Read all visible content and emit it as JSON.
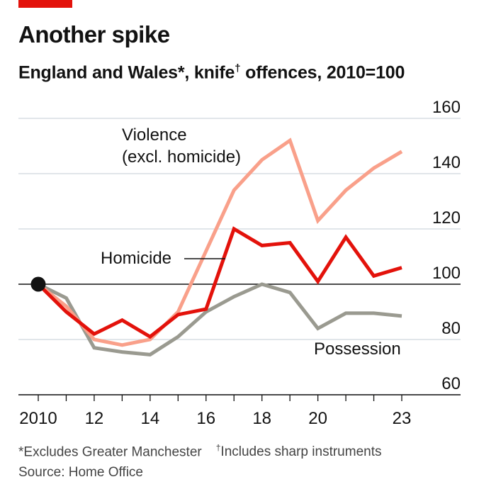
{
  "header": {
    "title": "Another spike",
    "subtitle_main": "England and Wales*, knife",
    "subtitle_dagger": "†",
    "subtitle_tail": " offences, 2010=100"
  },
  "footer": {
    "footnote_1": "*Excludes Greater Manchester",
    "footnote_2_mark": "†",
    "footnote_2": "Includes sharp instruments",
    "source": "Source: Home Office"
  },
  "colors": {
    "accent": "#e3120b",
    "violence": "#f9a08a",
    "homicide": "#e3120b",
    "possession": "#9a9a90",
    "grid": "#cfd7de",
    "baseline": "#121212"
  },
  "chart_data": {
    "type": "line",
    "title": "Another spike",
    "subtitle": "England and Wales*, knife† offences, 2010=100",
    "x": [
      2010,
      2011,
      2012,
      2013,
      2014,
      2015,
      2016,
      2017,
      2018,
      2019,
      2020,
      2021,
      2022,
      2023
    ],
    "x_tick_values": [
      2010,
      2012,
      2014,
      2016,
      2018,
      2020,
      2023
    ],
    "x_tick_labels": [
      "2010",
      "12",
      "14",
      "16",
      "18",
      "20",
      "23"
    ],
    "y_ticks": [
      60,
      80,
      100,
      120,
      140,
      160
    ],
    "ylim": [
      60,
      160
    ],
    "xlim": [
      2010,
      2023
    ],
    "y_axis_side": "right",
    "grid": true,
    "series": [
      {
        "name": "Violence (excl. homicide)",
        "label_lines": [
          "Violence",
          "(excl. homicide)"
        ],
        "color": "#f9a08a",
        "values": [
          100,
          92,
          80,
          78,
          80,
          90,
          112,
          134,
          145,
          152,
          123,
          134,
          142,
          148
        ]
      },
      {
        "name": "Homicide",
        "label_lines": [
          "Homicide"
        ],
        "color": "#e3120b",
        "values": [
          100,
          90,
          82,
          87,
          81,
          89,
          91,
          120,
          114,
          115,
          101,
          117,
          103,
          106
        ]
      },
      {
        "name": "Possession",
        "label_lines": [
          "Possession"
        ],
        "color": "#9a9a90",
        "values": [
          100,
          95,
          77,
          75.5,
          74.5,
          81,
          90,
          95.5,
          100,
          97,
          84,
          89.5,
          89.5,
          88.5
        ]
      }
    ],
    "base_point": {
      "x": 2010,
      "y": 100
    }
  }
}
